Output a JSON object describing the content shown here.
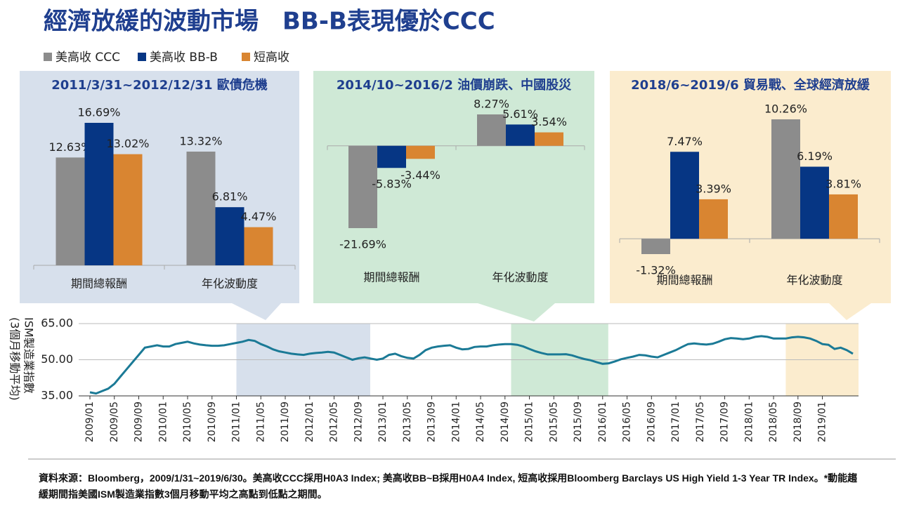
{
  "title": "經濟放緩的波動市場　BB-B表現優於CCC",
  "source": "資料來源：Bloomberg，2009/1/31~2019/6/30。美高收CCC採用H0A3 Index; 美高收BB~B採用H0A4 Index, 短高收採用Bloomberg Barclays US High Yield 1-3 Year TR Index。*動能趨緩期間指美國ISM製造業指數3個月移動平均之高點到低點之期間。",
  "chart_data": [
    {
      "type": "bar",
      "title": "2011/3/31~2012/12/31 歐債危機",
      "background": "#d7e0ec",
      "categories": [
        "期間總報酬",
        "年化波動度"
      ],
      "series": [
        {
          "name": "美高收 CCC",
          "color": "#8c8c8c",
          "values": [
            12.63,
            13.32
          ],
          "value_labels": [
            "12.63%",
            "13.32%"
          ]
        },
        {
          "name": "美高收 BB-B",
          "color": "#063684",
          "values": [
            16.69,
            6.81
          ],
          "value_labels": [
            "16.69%",
            "6.81%"
          ]
        },
        {
          "name": "短高收",
          "color": "#d98531",
          "values": [
            13.02,
            4.47
          ],
          "value_labels": [
            "13.02%",
            "4.47%"
          ]
        }
      ]
    },
    {
      "type": "bar",
      "title": "2014/10~2016/2 油價崩跌、中國股災",
      "background": "#cfe9d6",
      "categories": [
        "期間總報酬",
        "年化波動度"
      ],
      "series": [
        {
          "color": "#8c8c8c",
          "values": [
            -21.69,
            8.27
          ],
          "value_labels": [
            "-21.69%",
            "8.27%"
          ]
        },
        {
          "color": "#063684",
          "values": [
            -5.83,
            5.61
          ],
          "value_labels": [
            "-5.83%",
            "5.61%"
          ]
        },
        {
          "color": "#d98531",
          "values": [
            -3.44,
            3.54
          ],
          "value_labels": [
            "-3.44%",
            "3.54%"
          ]
        }
      ]
    },
    {
      "type": "bar",
      "title": "2018/6~2019/6 貿易戰、全球經濟放緩",
      "background": "#fbecce",
      "categories": [
        "期間總報酬",
        "年化波動度"
      ],
      "series": [
        {
          "color": "#8c8c8c",
          "values": [
            -1.32,
            10.26
          ],
          "value_labels": [
            "-1.32%",
            "10.26%"
          ]
        },
        {
          "color": "#063684",
          "values": [
            7.47,
            6.19
          ],
          "value_labels": [
            "7.47%",
            "6.19%"
          ]
        },
        {
          "color": "#d98531",
          "values": [
            3.39,
            3.81
          ],
          "value_labels": [
            "3.39%",
            "3.81%"
          ]
        }
      ]
    },
    {
      "type": "line",
      "ylabel": [
        "ISM製造業指數",
        "(3個月移動平均)"
      ],
      "color": "#1b7a96",
      "ylim": [
        35,
        65
      ],
      "yticks": [
        {
          "value": 35,
          "label": "35.00"
        },
        {
          "value": 50,
          "label": "50.00"
        },
        {
          "value": 65,
          "label": "65.00"
        }
      ],
      "grid": true,
      "highlights": [
        {
          "from": "2011/01",
          "to": "2012/10",
          "color": "#d7e0ec"
        },
        {
          "from": "2014/10",
          "to": "2016/01",
          "color": "#cfe9d6"
        },
        {
          "from": "2018/07",
          "to": "2019/06",
          "color": "#fbecce"
        }
      ],
      "x": [
        "2009/01",
        null,
        null,
        null,
        "2009/05",
        null,
        null,
        null,
        "2009/09",
        null,
        null,
        null,
        "2010/01",
        null,
        null,
        null,
        "2010/05",
        null,
        null,
        null,
        "2010/09",
        null,
        null,
        null,
        "2011/01",
        null,
        null,
        null,
        "2011/05",
        null,
        null,
        null,
        "2011/09",
        null,
        null,
        null,
        "2012/01",
        null,
        null,
        null,
        "2012/05",
        null,
        null,
        null,
        "2012/09",
        null,
        null,
        null,
        "2013/01",
        null,
        null,
        null,
        "2013/05",
        null,
        null,
        null,
        "2013/09",
        null,
        null,
        null,
        "2014/01",
        null,
        null,
        null,
        "2014/05",
        null,
        null,
        null,
        "2014/09",
        null,
        null,
        null,
        "2015/01",
        null,
        null,
        null,
        "2015/05",
        null,
        null,
        null,
        "2015/09",
        null,
        null,
        null,
        "2016/01",
        null,
        null,
        null,
        "2016/05",
        null,
        null,
        null,
        "2016/09",
        null,
        null,
        null,
        "2017/01",
        null,
        null,
        null,
        "2017/05",
        null,
        null,
        null,
        "2017/09",
        null,
        null,
        null,
        "2018/01",
        null,
        null,
        null,
        "2018/05",
        null,
        null,
        null,
        "2018/09",
        null,
        null,
        null,
        "2019/01",
        null,
        null,
        null,
        null,
        null
      ],
      "values": [
        36.5,
        36,
        37,
        38,
        40,
        43,
        46,
        49,
        52,
        55,
        55.5,
        56,
        55.5,
        55.5,
        56.5,
        57,
        57.5,
        56.8,
        56.3,
        56,
        55.8,
        55.8,
        56,
        56.5,
        57,
        57.5,
        58.2,
        57.8,
        56.5,
        55.5,
        54.3,
        53.5,
        53,
        52.5,
        52.2,
        52,
        52.5,
        52.8,
        53,
        53.3,
        53,
        52,
        51,
        50,
        50.6,
        51,
        50.5,
        50,
        50.5,
        52,
        52.5,
        51.5,
        50.8,
        50.5,
        52,
        54,
        55,
        55.5,
        55.8,
        56,
        55,
        54.3,
        54.5,
        55.3,
        55.5,
        55.5,
        56,
        56.3,
        56.5,
        56.5,
        56.2,
        55.5,
        54.5,
        53.5,
        52.8,
        52.2,
        52.2,
        52.2,
        52.3,
        51.8,
        51,
        50.3,
        49.8,
        49,
        48.3,
        48.5,
        49.3,
        50.2,
        50.8,
        51.3,
        52,
        51.8,
        51.3,
        51,
        52,
        53,
        54,
        55.3,
        56.5,
        56.8,
        56.5,
        56.3,
        56.6,
        57.5,
        58.5,
        59,
        58.8,
        58.5,
        58.8,
        59.5,
        59.8,
        59.5,
        58.8,
        58.8,
        58.8,
        59.3,
        59.5,
        59.3,
        58.8,
        57.8,
        56.5,
        56.2,
        54.5,
        55,
        54,
        52.5
      ]
    }
  ]
}
